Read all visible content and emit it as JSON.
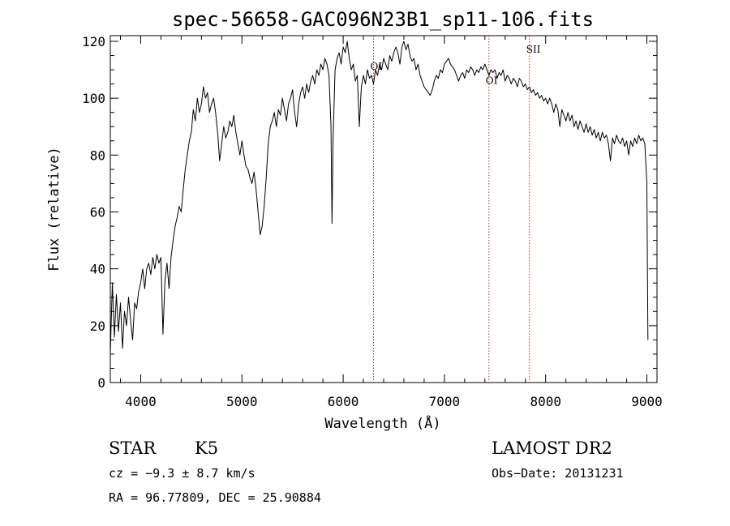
{
  "chart_data": {
    "type": "line",
    "title": "spec-56658-GAC096N23B1_sp11-106.fits",
    "xlabel": "Wavelength (Å)",
    "ylabel": "Flux (relative)",
    "xlim": [
      3700,
      9100
    ],
    "ylim": [
      0,
      122
    ],
    "xticks": [
      4000,
      5000,
      6000,
      7000,
      8000,
      9000
    ],
    "yticks": [
      0,
      20,
      40,
      60,
      80,
      100,
      120
    ],
    "grid": false,
    "line_color": "#000000",
    "marker_color": "#b03030",
    "series": [
      {
        "values": [
          [
            3700,
            10
          ],
          [
            3720,
            35
          ],
          [
            3740,
            16
          ],
          [
            3760,
            31
          ],
          [
            3780,
            18
          ],
          [
            3800,
            28
          ],
          [
            3820,
            12
          ],
          [
            3840,
            25
          ],
          [
            3860,
            20
          ],
          [
            3880,
            30
          ],
          [
            3900,
            22
          ],
          [
            3920,
            15
          ],
          [
            3940,
            28
          ],
          [
            3960,
            26
          ],
          [
            3980,
            32
          ],
          [
            4000,
            35
          ],
          [
            4020,
            40
          ],
          [
            4040,
            33
          ],
          [
            4060,
            40
          ],
          [
            4080,
            42
          ],
          [
            4100,
            38
          ],
          [
            4120,
            44
          ],
          [
            4140,
            40
          ],
          [
            4160,
            45
          ],
          [
            4180,
            42
          ],
          [
            4200,
            44
          ],
          [
            4220,
            17
          ],
          [
            4240,
            36
          ],
          [
            4260,
            42
          ],
          [
            4280,
            33
          ],
          [
            4300,
            44
          ],
          [
            4320,
            50
          ],
          [
            4340,
            55
          ],
          [
            4360,
            58
          ],
          [
            4380,
            62
          ],
          [
            4400,
            60
          ],
          [
            4420,
            68
          ],
          [
            4440,
            75
          ],
          [
            4460,
            80
          ],
          [
            4480,
            85
          ],
          [
            4500,
            88
          ],
          [
            4520,
            96
          ],
          [
            4540,
            92
          ],
          [
            4560,
            100
          ],
          [
            4580,
            95
          ],
          [
            4600,
            98
          ],
          [
            4620,
            104
          ],
          [
            4640,
            100
          ],
          [
            4660,
            102
          ],
          [
            4680,
            95
          ],
          [
            4700,
            98
          ],
          [
            4720,
            100
          ],
          [
            4740,
            95
          ],
          [
            4760,
            88
          ],
          [
            4780,
            78
          ],
          [
            4800,
            84
          ],
          [
            4820,
            90
          ],
          [
            4840,
            86
          ],
          [
            4860,
            88
          ],
          [
            4880,
            92
          ],
          [
            4900,
            90
          ],
          [
            4920,
            94
          ],
          [
            4940,
            88
          ],
          [
            4960,
            84
          ],
          [
            4980,
            80
          ],
          [
            5000,
            85
          ],
          [
            5020,
            80
          ],
          [
            5040,
            76
          ],
          [
            5060,
            75
          ],
          [
            5080,
            72
          ],
          [
            5100,
            70
          ],
          [
            5120,
            74
          ],
          [
            5140,
            68
          ],
          [
            5160,
            60
          ],
          [
            5180,
            52
          ],
          [
            5200,
            55
          ],
          [
            5220,
            62
          ],
          [
            5240,
            72
          ],
          [
            5260,
            84
          ],
          [
            5280,
            90
          ],
          [
            5300,
            92
          ],
          [
            5320,
            95
          ],
          [
            5340,
            90
          ],
          [
            5360,
            96
          ],
          [
            5380,
            94
          ],
          [
            5400,
            100
          ],
          [
            5420,
            96
          ],
          [
            5440,
            92
          ],
          [
            5460,
            98
          ],
          [
            5480,
            100
          ],
          [
            5500,
            103
          ],
          [
            5520,
            95
          ],
          [
            5540,
            90
          ],
          [
            5560,
            98
          ],
          [
            5580,
            102
          ],
          [
            5600,
            104
          ],
          [
            5620,
            100
          ],
          [
            5640,
            105
          ],
          [
            5660,
            102
          ],
          [
            5680,
            106
          ],
          [
            5700,
            108
          ],
          [
            5720,
            105
          ],
          [
            5740,
            110
          ],
          [
            5760,
            108
          ],
          [
            5780,
            112
          ],
          [
            5800,
            110
          ],
          [
            5820,
            114
          ],
          [
            5840,
            112
          ],
          [
            5860,
            108
          ],
          [
            5880,
            90
          ],
          [
            5890,
            56
          ],
          [
            5900,
            85
          ],
          [
            5920,
            110
          ],
          [
            5940,
            114
          ],
          [
            5960,
            116
          ],
          [
            5980,
            112
          ],
          [
            6000,
            118
          ],
          [
            6020,
            116
          ],
          [
            6040,
            120
          ],
          [
            6060,
            114
          ],
          [
            6080,
            110
          ],
          [
            6100,
            112
          ],
          [
            6120,
            106
          ],
          [
            6140,
            108
          ],
          [
            6160,
            90
          ],
          [
            6180,
            104
          ],
          [
            6200,
            108
          ],
          [
            6220,
            105
          ],
          [
            6240,
            110
          ],
          [
            6260,
            107
          ],
          [
            6280,
            108
          ],
          [
            6300,
            105
          ],
          [
            6320,
            110
          ],
          [
            6340,
            108
          ],
          [
            6360,
            112
          ],
          [
            6380,
            110
          ],
          [
            6400,
            114
          ],
          [
            6420,
            112
          ],
          [
            6440,
            110
          ],
          [
            6460,
            115
          ],
          [
            6480,
            113
          ],
          [
            6500,
            116
          ],
          [
            6520,
            118
          ],
          [
            6540,
            116
          ],
          [
            6560,
            112
          ],
          [
            6580,
            118
          ],
          [
            6600,
            120
          ],
          [
            6620,
            117
          ],
          [
            6640,
            119
          ],
          [
            6660,
            115
          ],
          [
            6680,
            113
          ],
          [
            6700,
            114
          ],
          [
            6720,
            110
          ],
          [
            6740,
            112
          ],
          [
            6760,
            108
          ],
          [
            6780,
            106
          ],
          [
            6800,
            104
          ],
          [
            6820,
            103
          ],
          [
            6840,
            102
          ],
          [
            6860,
            101
          ],
          [
            6880,
            103
          ],
          [
            6900,
            106
          ],
          [
            6920,
            108
          ],
          [
            6940,
            107
          ],
          [
            6960,
            110
          ],
          [
            6980,
            109
          ],
          [
            7000,
            112
          ],
          [
            7020,
            113
          ],
          [
            7040,
            114
          ],
          [
            7060,
            112
          ],
          [
            7080,
            111
          ],
          [
            7100,
            110
          ],
          [
            7120,
            108
          ],
          [
            7140,
            106
          ],
          [
            7160,
            108
          ],
          [
            7180,
            109
          ],
          [
            7200,
            107
          ],
          [
            7220,
            110
          ],
          [
            7240,
            109
          ],
          [
            7260,
            111
          ],
          [
            7280,
            110
          ],
          [
            7300,
            108
          ],
          [
            7320,
            110
          ],
          [
            7340,
            109
          ],
          [
            7360,
            111
          ],
          [
            7380,
            110
          ],
          [
            7400,
            112
          ],
          [
            7420,
            110
          ],
          [
            7440,
            108
          ],
          [
            7460,
            110
          ],
          [
            7480,
            109
          ],
          [
            7500,
            110
          ],
          [
            7520,
            107
          ],
          [
            7540,
            109
          ],
          [
            7560,
            108
          ],
          [
            7580,
            110
          ],
          [
            7600,
            106
          ],
          [
            7620,
            108
          ],
          [
            7640,
            107
          ],
          [
            7660,
            105
          ],
          [
            7680,
            107
          ],
          [
            7700,
            106
          ],
          [
            7720,
            104
          ],
          [
            7740,
            107
          ],
          [
            7760,
            106
          ],
          [
            7780,
            104
          ],
          [
            7800,
            105
          ],
          [
            7820,
            103
          ],
          [
            7840,
            104
          ],
          [
            7860,
            102
          ],
          [
            7880,
            103
          ],
          [
            7900,
            101
          ],
          [
            7920,
            102
          ],
          [
            7940,
            100
          ],
          [
            7960,
            101
          ],
          [
            7980,
            99
          ],
          [
            8000,
            100
          ],
          [
            8020,
            98
          ],
          [
            8040,
            100
          ],
          [
            8060,
            98
          ],
          [
            8080,
            95
          ],
          [
            8100,
            98
          ],
          [
            8120,
            96
          ],
          [
            8140,
            90
          ],
          [
            8160,
            96
          ],
          [
            8180,
            94
          ],
          [
            8200,
            92
          ],
          [
            8220,
            95
          ],
          [
            8240,
            92
          ],
          [
            8260,
            94
          ],
          [
            8280,
            90
          ],
          [
            8300,
            92
          ],
          [
            8320,
            89
          ],
          [
            8340,
            92
          ],
          [
            8360,
            90
          ],
          [
            8380,
            88
          ],
          [
            8400,
            91
          ],
          [
            8420,
            88
          ],
          [
            8440,
            90
          ],
          [
            8460,
            87
          ],
          [
            8480,
            89
          ],
          [
            8500,
            86
          ],
          [
            8520,
            88
          ],
          [
            8540,
            85
          ],
          [
            8560,
            88
          ],
          [
            8580,
            86
          ],
          [
            8600,
            87
          ],
          [
            8620,
            84
          ],
          [
            8640,
            78
          ],
          [
            8660,
            86
          ],
          [
            8680,
            84
          ],
          [
            8700,
            87
          ],
          [
            8720,
            85
          ],
          [
            8740,
            84
          ],
          [
            8760,
            86
          ],
          [
            8780,
            83
          ],
          [
            8800,
            85
          ],
          [
            8820,
            80
          ],
          [
            8840,
            85
          ],
          [
            8860,
            83
          ],
          [
            8880,
            86
          ],
          [
            8900,
            84
          ],
          [
            8920,
            87
          ],
          [
            8940,
            85
          ],
          [
            8960,
            86
          ],
          [
            8980,
            84
          ],
          [
            9000,
            70
          ],
          [
            9010,
            15
          ]
        ]
      }
    ],
    "annotations": [
      {
        "label": "OI",
        "x": 6300,
        "y": 110
      },
      {
        "label": "OI",
        "x": 7440,
        "y": 105
      },
      {
        "label": "SII",
        "x": 7840,
        "y": 116
      }
    ],
    "markers": [
      6300,
      7440,
      7840
    ]
  },
  "footer": {
    "object_class": "STAR",
    "subclass": "K5",
    "survey": "LAMOST DR2",
    "cz": "cz = −9.3 ± 8.7 km/s",
    "obs_date": "Obs−Date: 20131231",
    "radec": "RA =  96.77809, DEC =  25.90884"
  }
}
